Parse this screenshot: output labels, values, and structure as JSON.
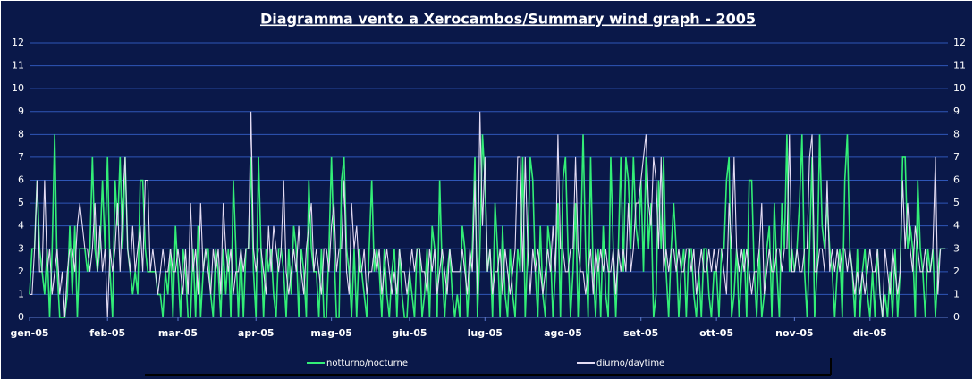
{
  "chart_data": {
    "type": "line",
    "title": "Diagramma vento a Xerocambos/Summary wind graph - 2005",
    "xlim": [
      0,
      365
    ],
    "xticks": [
      {
        "value": 0,
        "label": "gen-05"
      },
      {
        "value": 31,
        "label": "feb-05"
      },
      {
        "value": 59,
        "label": "mar-05"
      },
      {
        "value": 90,
        "label": "apr-05"
      },
      {
        "value": 120,
        "label": "mag-05"
      },
      {
        "value": 151,
        "label": "giu-05"
      },
      {
        "value": 181,
        "label": "lug-05"
      },
      {
        "value": 212,
        "label": "ago-05"
      },
      {
        "value": 243,
        "label": "set-05"
      },
      {
        "value": 273,
        "label": "ott-05"
      },
      {
        "value": 304,
        "label": "nov-05"
      },
      {
        "value": 334,
        "label": "dic-05"
      }
    ],
    "ylim": [
      0,
      12
    ],
    "yticks": [
      0,
      1,
      2,
      3,
      4,
      5,
      6,
      7,
      8,
      9,
      10,
      11,
      12
    ],
    "grid": true,
    "legend": "bottom",
    "x": [
      0,
      1,
      2,
      3,
      4,
      5,
      6,
      7,
      8,
      9,
      10,
      11,
      12,
      13,
      14,
      15,
      16,
      17,
      18,
      19,
      20,
      21,
      22,
      23,
      24,
      25,
      26,
      27,
      28,
      29,
      30,
      31,
      32,
      33,
      34,
      35,
      36,
      37,
      38,
      39,
      40,
      41,
      42,
      43,
      44,
      45,
      46,
      47,
      48,
      49,
      50,
      51,
      52,
      53,
      54,
      55,
      56,
      57,
      58,
      59,
      60,
      61,
      62,
      63,
      64,
      65,
      66,
      67,
      68,
      69,
      70,
      71,
      72,
      73,
      74,
      75,
      76,
      77,
      78,
      79,
      80,
      81,
      82,
      83,
      84,
      85,
      86,
      87,
      88,
      89,
      90,
      91,
      92,
      93,
      94,
      95,
      96,
      97,
      98,
      99,
      100,
      101,
      102,
      103,
      104,
      105,
      106,
      107,
      108,
      109,
      110,
      111,
      112,
      113,
      114,
      115,
      116,
      117,
      118,
      119,
      120,
      121,
      122,
      123,
      124,
      125,
      126,
      127,
      128,
      129,
      130,
      131,
      132,
      133,
      134,
      135,
      136,
      137,
      138,
      139,
      140,
      141,
      142,
      143,
      144,
      145,
      146,
      147,
      148,
      149,
      150,
      151,
      152,
      153,
      154,
      155,
      156,
      157,
      158,
      159,
      160,
      161,
      162,
      163,
      164,
      165,
      166,
      167,
      168,
      169,
      170,
      171,
      172,
      173,
      174,
      175,
      176,
      177,
      178,
      179,
      180,
      181,
      182,
      183,
      184,
      185,
      186,
      187,
      188,
      189,
      190,
      191,
      192,
      193,
      194,
      195,
      196,
      197,
      198,
      199,
      200,
      201,
      202,
      203,
      204,
      205,
      206,
      207,
      208,
      209,
      210,
      211,
      212,
      213,
      214,
      215,
      216,
      217,
      218,
      219,
      220,
      221,
      222,
      223,
      224,
      225,
      226,
      227,
      228,
      229,
      230,
      231,
      232,
      233,
      234,
      235,
      236,
      237,
      238,
      239,
      240,
      241,
      242,
      243,
      244,
      245,
      246,
      247,
      248,
      249,
      250,
      251,
      252,
      253,
      254,
      255,
      256,
      257,
      258,
      259,
      260,
      261,
      262,
      263,
      264,
      265,
      266,
      267,
      268,
      269,
      270,
      271,
      272,
      273,
      274,
      275,
      276,
      277,
      278,
      279,
      280,
      281,
      282,
      283,
      284,
      285,
      286,
      287,
      288,
      289,
      290,
      291,
      292,
      293,
      294,
      295,
      296,
      297,
      298,
      299,
      300,
      301,
      302,
      303,
      304,
      305,
      306,
      307,
      308,
      309,
      310,
      311,
      312,
      313,
      314,
      315,
      316,
      317,
      318,
      319,
      320,
      321,
      322,
      323,
      324,
      325,
      326,
      327,
      328,
      329,
      330,
      331,
      332,
      333,
      334,
      335,
      336,
      337,
      338,
      339,
      340,
      341,
      342,
      343,
      344,
      345,
      346,
      347,
      348,
      349,
      350,
      351,
      352,
      353,
      354,
      355,
      356,
      357,
      358,
      359,
      360,
      361,
      362,
      363,
      364
    ],
    "series": [
      {
        "name": "notturno/nocturne",
        "color": "#33ee77",
        "values": [
          1,
          3,
          3,
          6,
          3,
          2,
          1,
          3,
          0,
          3,
          8,
          2,
          0,
          0,
          0,
          1,
          4,
          1,
          4,
          0,
          3,
          3,
          3,
          2,
          3,
          7,
          3,
          2,
          3,
          6,
          3,
          7,
          2,
          0,
          6,
          4,
          7,
          3,
          7,
          3,
          2,
          1,
          2,
          1,
          6,
          6,
          3,
          2,
          2,
          2,
          2,
          1,
          1,
          0,
          2,
          1,
          3,
          0,
          4,
          2,
          0,
          3,
          2,
          0,
          0,
          3,
          0,
          4,
          0,
          2,
          3,
          3,
          1,
          0,
          3,
          2,
          0,
          3,
          1,
          3,
          0,
          6,
          3,
          0,
          3,
          0,
          3,
          3,
          7,
          2,
          0,
          7,
          3,
          0,
          3,
          2,
          3,
          1,
          0,
          3,
          3,
          2,
          0,
          3,
          1,
          4,
          3,
          0,
          3,
          2,
          0,
          6,
          3,
          2,
          2,
          0,
          3,
          0,
          0,
          3,
          7,
          3,
          0,
          0,
          6,
          7,
          3,
          2,
          0,
          3,
          0,
          3,
          2,
          1,
          0,
          3,
          6,
          2,
          3,
          2,
          0,
          3,
          1,
          0,
          2,
          3,
          0,
          3,
          1,
          0,
          0,
          2,
          1,
          0,
          3,
          3,
          0,
          1,
          3,
          0,
          4,
          3,
          0,
          6,
          2,
          0,
          2,
          3,
          1,
          0,
          1,
          0,
          4,
          3,
          0,
          2,
          3,
          7,
          0,
          3,
          8,
          6,
          2,
          3,
          0,
          5,
          3,
          0,
          4,
          1,
          0,
          3,
          1,
          0,
          3,
          2,
          7,
          0,
          3,
          7,
          6,
          2,
          0,
          4,
          1,
          0,
          4,
          3,
          0,
          2,
          5,
          0,
          6,
          7,
          3,
          0,
          2,
          5,
          0,
          3,
          8,
          3,
          0,
          7,
          2,
          0,
          3,
          0,
          4,
          1,
          0,
          7,
          3,
          0,
          3,
          7,
          2,
          7,
          6,
          3,
          7,
          4,
          3,
          6,
          2,
          7,
          3,
          5,
          0,
          1,
          6,
          3,
          7,
          2,
          0,
          3,
          5,
          3,
          0,
          2,
          3,
          0,
          3,
          3,
          1,
          0,
          2,
          0,
          3,
          3,
          1,
          0,
          2,
          2,
          0,
          3,
          3,
          6,
          7,
          0,
          1,
          3,
          0,
          2,
          3,
          0,
          6,
          6,
          2,
          0,
          3,
          0,
          1,
          3,
          4,
          0,
          5,
          2,
          0,
          5,
          3,
          8,
          2,
          3,
          2,
          3,
          5,
          8,
          2,
          0,
          3,
          7,
          0,
          2,
          8,
          4,
          3,
          5,
          3,
          2,
          0,
          2,
          3,
          0,
          6,
          8,
          3,
          2,
          0,
          3,
          0,
          2,
          3,
          1,
          0,
          2,
          0,
          3,
          1,
          0,
          1,
          0,
          2,
          0,
          3,
          0,
          2,
          7,
          7,
          3,
          4,
          3,
          0,
          6,
          3,
          2,
          0,
          3,
          2,
          3,
          0,
          2,
          3,
          3,
          3
        ]
      },
      {
        "name": "diurno/daytime",
        "color": "#e4dcf4",
        "values": [
          1,
          1,
          3,
          6,
          2,
          2,
          6,
          2,
          3,
          1,
          2,
          3,
          1,
          2,
          0,
          2,
          3,
          3,
          2,
          4,
          5,
          4,
          3,
          3,
          2,
          3,
          5,
          2,
          4,
          2,
          3,
          0,
          3,
          2,
          3,
          5,
          2,
          5,
          7,
          3,
          2,
          4,
          2,
          3,
          4,
          2,
          6,
          6,
          2,
          3,
          2,
          1,
          2,
          3,
          2,
          2,
          3,
          2,
          2,
          3,
          2,
          1,
          3,
          1,
          5,
          2,
          3,
          1,
          5,
          2,
          3,
          2,
          1,
          3,
          2,
          3,
          1,
          5,
          3,
          2,
          3,
          1,
          2,
          2,
          3,
          2,
          3,
          3,
          9,
          3,
          2,
          3,
          3,
          2,
          1,
          4,
          2,
          4,
          3,
          2,
          3,
          6,
          2,
          1,
          2,
          3,
          2,
          4,
          2,
          1,
          3,
          4,
          5,
          2,
          3,
          2,
          1,
          3,
          3,
          2,
          4,
          5,
          2,
          3,
          3,
          6,
          2,
          1,
          5,
          3,
          4,
          2,
          2,
          3,
          1,
          2,
          2,
          3,
          2,
          3,
          1,
          2,
          3,
          2,
          1,
          2,
          1,
          3,
          2,
          2,
          1,
          2,
          3,
          2,
          3,
          3,
          2,
          2,
          1,
          3,
          2,
          3,
          1,
          2,
          3,
          2,
          1,
          3,
          2,
          2,
          2,
          2,
          3,
          2,
          1,
          3,
          2,
          6,
          1,
          9,
          4,
          7,
          2,
          3,
          1,
          2,
          2,
          3,
          1,
          3,
          2,
          1,
          2,
          3,
          7,
          7,
          2,
          7,
          3,
          1,
          3,
          2,
          3,
          2,
          1,
          2,
          3,
          2,
          4,
          2,
          8,
          3,
          3,
          2,
          2,
          3,
          3,
          7,
          3,
          2,
          2,
          1,
          2,
          3,
          1,
          3,
          2,
          3,
          2,
          3,
          2,
          2,
          3,
          1,
          3,
          2,
          3,
          2,
          5,
          2,
          3,
          5,
          5,
          6,
          7,
          8,
          5,
          4,
          7,
          6,
          3,
          7,
          2,
          3,
          2,
          3,
          3,
          2,
          3,
          2,
          2,
          3,
          3,
          2,
          3,
          1,
          2,
          3,
          2,
          2,
          3,
          2,
          3,
          2,
          3,
          3,
          2,
          1,
          5,
          3,
          7,
          3,
          2,
          3,
          2,
          3,
          2,
          1,
          2,
          2,
          3,
          5,
          1,
          2,
          3,
          2,
          2,
          3,
          3,
          2,
          3,
          3,
          8,
          2,
          2,
          3,
          2,
          2,
          3,
          3,
          7,
          8,
          2,
          2,
          3,
          3,
          2,
          6,
          2,
          3,
          2,
          3,
          2,
          3,
          3,
          2,
          3,
          2,
          1,
          2,
          1,
          2,
          1,
          2,
          3,
          2,
          2,
          3,
          1,
          0,
          3,
          2,
          1,
          3,
          2,
          1,
          2,
          6,
          3,
          5,
          3,
          2,
          4,
          3,
          2,
          2,
          3,
          2,
          2,
          3,
          7,
          1,
          3,
          3,
          3
        ]
      }
    ]
  }
}
